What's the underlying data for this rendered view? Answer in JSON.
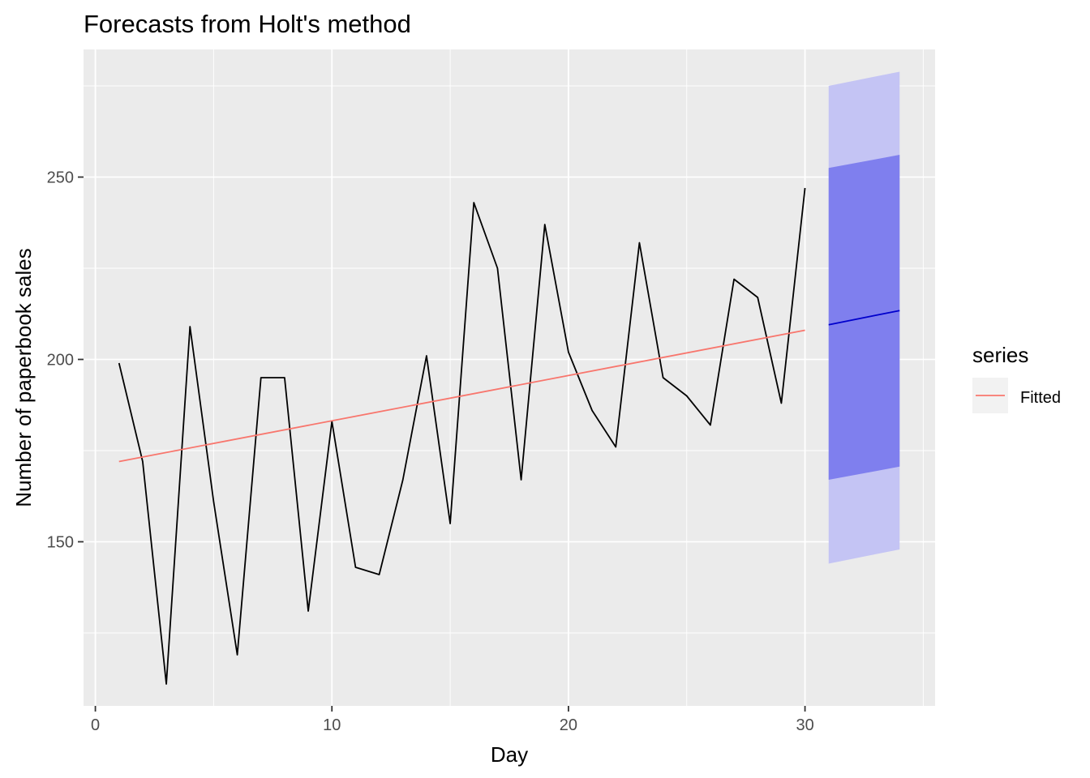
{
  "chart_data": {
    "type": "line",
    "title": "Forecasts from Holt's method",
    "xlabel": "Day",
    "ylabel": "Number of paperbook sales",
    "xlim": [
      -0.5,
      35.5
    ],
    "ylim": [
      105,
      285
    ],
    "x_ticks": [
      0,
      10,
      20,
      30
    ],
    "x_tick_labels": [
      "0",
      "10",
      "20",
      "30"
    ],
    "y_ticks": [
      150,
      200,
      250
    ],
    "y_tick_labels": [
      "150",
      "200",
      "250"
    ],
    "grid": true,
    "legend": {
      "title": "series",
      "placement": "right",
      "entries": [
        "Fitted"
      ]
    },
    "colors": {
      "panel": "#ebebeb",
      "grid": "#ffffff",
      "observed": "#000000",
      "fitted": "#f8766d",
      "forecast": "#0000cc",
      "band80": "#7f7fee",
      "band95": "#c4c4f4"
    },
    "series": [
      {
        "role": "observed",
        "x": [
          1,
          2,
          3,
          4,
          5,
          6,
          7,
          8,
          9,
          10,
          11,
          12,
          13,
          14,
          15,
          16,
          17,
          18,
          19,
          20,
          21,
          22,
          23,
          24,
          25,
          26,
          27,
          28,
          29,
          30
        ],
        "values": [
          199,
          172,
          111,
          209,
          161,
          119,
          195,
          195,
          131,
          183,
          143,
          141,
          167,
          201,
          155,
          243,
          225,
          167,
          237,
          202,
          186,
          176,
          232,
          195,
          190,
          182,
          222,
          217,
          188,
          247
        ]
      },
      {
        "name": "Fitted",
        "role": "fitted",
        "x": [
          1,
          30
        ],
        "values": [
          172,
          208
        ]
      },
      {
        "role": "forecast",
        "x": [
          31,
          32,
          33,
          34
        ],
        "values": [
          209.5,
          210.8,
          212.1,
          213.4
        ],
        "lower80": [
          167,
          168.2,
          169.4,
          170.6
        ],
        "upper80": [
          252.5,
          253.7,
          254.9,
          256.1
        ],
        "lower95": [
          144,
          145.3,
          146.6,
          147.9
        ],
        "upper95": [
          275,
          276.3,
          277.6,
          278.9
        ]
      }
    ]
  }
}
